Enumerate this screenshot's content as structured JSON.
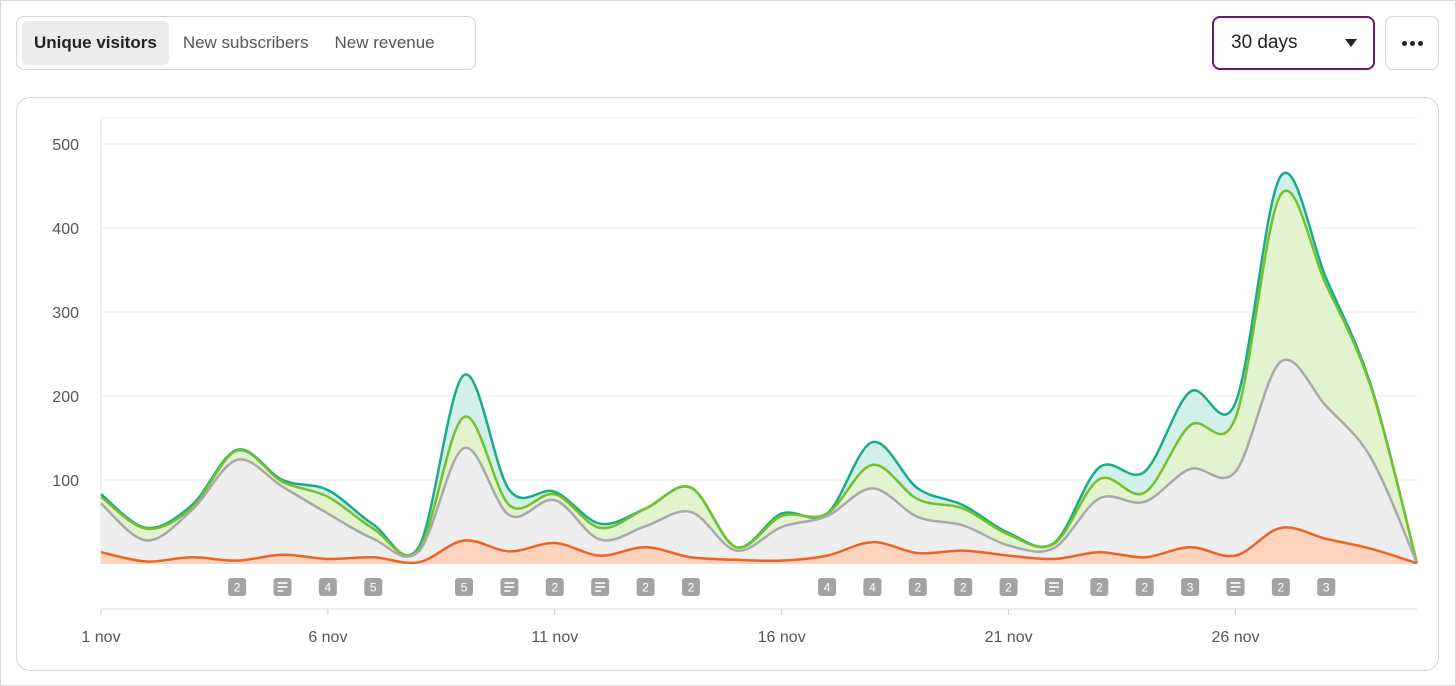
{
  "tabs": [
    {
      "label": "Unique visitors",
      "active": true
    },
    {
      "label": "New subscribers",
      "active": false
    },
    {
      "label": "New revenue",
      "active": false
    }
  ],
  "range": {
    "selected": "30 days",
    "icon": "caret-down-icon"
  },
  "more_button": {
    "icon": "ellipsis-icon"
  },
  "colors": {
    "teal": "#1aaa8c",
    "teal_fill": "#d2efe9",
    "green": "#72c12c",
    "green_fill": "#e2f4cf",
    "gray": "#a9a9a9",
    "gray_fill": "#eeeeee",
    "orange": "#ea6424",
    "orange_fill": "#fdd3bd",
    "badge": "#a3a3a3"
  },
  "chart_data": {
    "type": "area",
    "stacked": true,
    "x": [
      "1 nov",
      "2 nov",
      "3 nov",
      "4 nov",
      "5 nov",
      "6 nov",
      "7 nov",
      "8 nov",
      "9 nov",
      "10 nov",
      "11 nov",
      "12 nov",
      "13 nov",
      "14 nov",
      "15 nov",
      "16 nov",
      "17 nov",
      "18 nov",
      "19 nov",
      "20 nov",
      "21 nov",
      "22 nov",
      "23 nov",
      "24 nov",
      "25 nov",
      "26 nov",
      "27 nov",
      "28 nov",
      "29 nov",
      "30 nov"
    ],
    "x_tick_labels": [
      "1 nov",
      "6 nov",
      "11 nov",
      "16 nov",
      "21 nov",
      "26 nov"
    ],
    "ylim": [
      0,
      500
    ],
    "y_ticks": [
      100,
      200,
      300,
      400,
      500
    ],
    "grid": true,
    "series": [
      {
        "color": "orange",
        "values": [
          14,
          3,
          8,
          4,
          11,
          6,
          8,
          2,
          28,
          15,
          25,
          10,
          20,
          8,
          5,
          4,
          10,
          26,
          13,
          16,
          10,
          6,
          14,
          8,
          20,
          10,
          43,
          30,
          18,
          1
        ]
      },
      {
        "color": "gray",
        "values": [
          72,
          28,
          64,
          124,
          92,
          60,
          30,
          15,
          138,
          58,
          76,
          29,
          45,
          62,
          16,
          44,
          57,
          90,
          56,
          46,
          22,
          19,
          78,
          74,
          113,
          110,
          241,
          188,
          125,
          1
        ]
      },
      {
        "color": "green",
        "values": [
          80,
          42,
          67,
          135,
          98,
          80,
          42,
          17,
          175,
          70,
          83,
          43,
          66,
          91,
          20,
          57,
          60,
          118,
          77,
          66,
          35,
          24,
          101,
          85,
          165,
          174,
          440,
          332,
          208,
          1
        ]
      },
      {
        "color": "teal",
        "values": [
          83,
          43,
          70,
          136,
          100,
          88,
          47,
          20,
          225,
          88,
          86,
          48,
          66,
          91,
          20,
          60,
          60,
          145,
          90,
          70,
          37,
          25,
          115,
          110,
          205,
          192,
          462,
          340,
          210,
          1
        ]
      }
    ],
    "annotations": [
      {
        "x": "4 nov",
        "label": "2"
      },
      {
        "x": "5 nov",
        "label": "",
        "icon": "post-icon"
      },
      {
        "x": "6 nov",
        "label": "4"
      },
      {
        "x": "7 nov",
        "label": "5"
      },
      {
        "x": "9 nov",
        "label": "5"
      },
      {
        "x": "10 nov",
        "label": "",
        "icon": "post-icon"
      },
      {
        "x": "11 nov",
        "label": "2"
      },
      {
        "x": "12 nov",
        "label": "",
        "icon": "post-icon"
      },
      {
        "x": "13 nov",
        "label": "2"
      },
      {
        "x": "14 nov",
        "label": "2"
      },
      {
        "x": "17 nov",
        "label": "4"
      },
      {
        "x": "18 nov",
        "label": "4"
      },
      {
        "x": "19 nov",
        "label": "2"
      },
      {
        "x": "20 nov",
        "label": "2"
      },
      {
        "x": "21 nov",
        "label": "2"
      },
      {
        "x": "22 nov",
        "label": "",
        "icon": "post-icon"
      },
      {
        "x": "23 nov",
        "label": "2"
      },
      {
        "x": "24 nov",
        "label": "2"
      },
      {
        "x": "25 nov",
        "label": "3"
      },
      {
        "x": "26 nov",
        "label": "",
        "icon": "post-icon"
      },
      {
        "x": "27 nov",
        "label": "2"
      },
      {
        "x": "28 nov",
        "label": "3"
      }
    ]
  }
}
